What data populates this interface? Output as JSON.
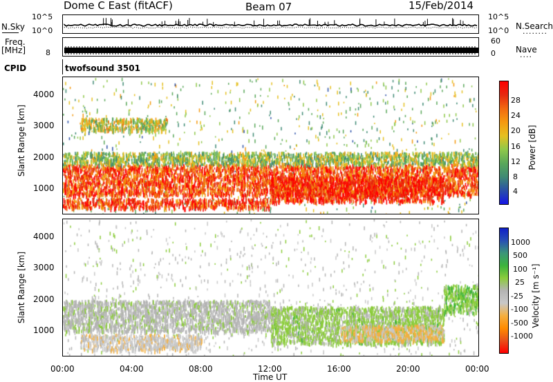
{
  "header": {
    "station": "Dome C East (fitACF)",
    "beam": "Beam 07",
    "date": "15/Feb/2014"
  },
  "noise_panel": {
    "left_label": "N.Sky",
    "left_ticks": [
      "10^5",
      "10^0"
    ],
    "right_ticks": [
      "10^5",
      "10^0"
    ],
    "right_label": "N.Search",
    "right_dots": "........"
  },
  "freq_panel": {
    "left_label_line1": "Freq.",
    "left_label_line2": "[MHz]",
    "left_tick": "8",
    "right_ticks": [
      "60",
      "0"
    ],
    "right_label": "Nave",
    "right_dots": "...."
  },
  "cpid_panel": {
    "label": "CPID",
    "value": "twofsound 3501"
  },
  "power_panel": {
    "ylabel": "Slant Range [km]",
    "yticks": [
      "4000",
      "3000",
      "2000",
      "1000"
    ],
    "colorbar_label": "Power [dB]",
    "colorbar_ticks": [
      "28",
      "24",
      "20",
      "16",
      "12",
      "8",
      "4"
    ]
  },
  "velocity_panel": {
    "ylabel": "Slant Range [km]",
    "yticks": [
      "4000",
      "3000",
      "2000",
      "1000"
    ],
    "colorbar_label": "Velocity [m s⁻¹]",
    "colorbar_ticks": [
      "1000",
      "500",
      "100",
      "25",
      "-25",
      "-100",
      "-500",
      "-1000"
    ]
  },
  "x_axis": {
    "ticks": [
      "00:00",
      "04:00",
      "08:00",
      "12:00",
      "16:00",
      "20:00",
      "00:00"
    ],
    "label": "Time UT"
  },
  "colors": {
    "power_scale": [
      "#1515e6",
      "#2a4fa8",
      "#3f8a74",
      "#5aa85a",
      "#8fc84a",
      "#e6c020",
      "#f59a10",
      "#f26a10",
      "#e62a10",
      "#ff0000"
    ],
    "velocity_scale": [
      "#ff0000",
      "#e8501a",
      "#ff8c00",
      "#f5b040",
      "#c8c8c8",
      "#b4b4b4",
      "#8ccc3c",
      "#3cb43c",
      "#3c9678",
      "#2850b4",
      "#1020c8"
    ]
  },
  "chart_data": {
    "type": "heatmap",
    "x_range_hours": [
      0,
      24
    ],
    "y_range_km": [
      180,
      4600
    ],
    "power_range_db": [
      0,
      32
    ],
    "velocity_range_mps": [
      -1000,
      1000
    ],
    "power_features": [
      {
        "t": [
          0,
          24
        ],
        "r": [
          800,
          1800
        ],
        "power_db": 26
      },
      {
        "t": [
          12,
          22
        ],
        "r": [
          600,
          1400
        ],
        "power_db": 28
      },
      {
        "t": [
          0,
          12
        ],
        "r": [
          400,
          700
        ],
        "power_db": 27
      },
      {
        "t": [
          0,
          24
        ],
        "r": [
          1800,
          2200
        ],
        "power_db": 14
      },
      {
        "t": [
          1,
          6
        ],
        "r": [
          2900,
          3300
        ],
        "power_db": 16
      }
    ],
    "velocity_features": [
      {
        "t": [
          0,
          12
        ],
        "r": [
          1000,
          2000
        ],
        "velocity_mps": 0
      },
      {
        "t": [
          1,
          8
        ],
        "r": [
          400,
          900
        ],
        "velocity_mps": -200
      },
      {
        "t": [
          12,
          22
        ],
        "r": [
          600,
          1800
        ],
        "velocity_mps": 150
      },
      {
        "t": [
          16,
          22
        ],
        "r": [
          700,
          1200
        ],
        "velocity_mps": -300
      },
      {
        "t": [
          22,
          24
        ],
        "r": [
          1600,
          2500
        ],
        "velocity_mps": 200
      }
    ]
  }
}
